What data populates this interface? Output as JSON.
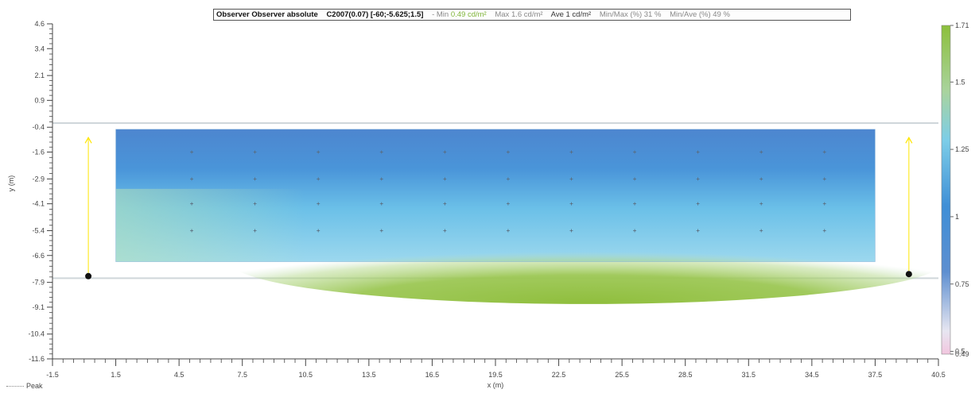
{
  "header": {
    "title": "Observer Observer absolute",
    "params": "C2007(0.07)  [-60;-5.625;1.5]",
    "min_label": "- Min",
    "min_value": "0.49 cd/m²",
    "max": "Max 1.6 cd/m²",
    "ave": "Ave 1 cd/m²",
    "minmax": "Min/Max (%) 31 %",
    "minave": "Min/Ave (%) 49 %"
  },
  "legend": {
    "peak_label": "Peak"
  },
  "chart_data": {
    "type": "heatmap",
    "title": "",
    "xlabel": "x (m)",
    "ylabel": "y (m)",
    "xlim": [
      -1.5,
      40.5
    ],
    "ylim": [
      -11.6,
      4.6
    ],
    "x_ticks": [
      "-1.5",
      "1.5",
      "4.5",
      "7.5",
      "10.5",
      "13.5",
      "16.5",
      "19.5",
      "22.5",
      "25.5",
      "28.5",
      "31.5",
      "34.5",
      "37.5",
      "40.5"
    ],
    "y_ticks": [
      "4.6",
      "3.4",
      "2.1",
      "0.9",
      "-0.4",
      "-1.6",
      "-2.9",
      "-4.1",
      "-5.4",
      "-6.6",
      "-7.9",
      "-9.1",
      "-10.4",
      "-11.6"
    ],
    "road_area": {
      "x": [
        -1.5,
        40.5
      ],
      "y": [
        -7.7,
        -0.2
      ]
    },
    "calc_area": {
      "x": [
        1.5,
        37.5
      ],
      "y": [
        -6.9,
        -0.5
      ]
    },
    "grid_x": [
      5.1,
      8.1,
      11.1,
      14.1,
      17.1,
      20.1,
      23.1,
      26.1,
      29.1,
      32.1,
      35.1
    ],
    "grid_y": [
      -1.6,
      -2.9,
      -4.1,
      -5.4
    ],
    "observers": [
      {
        "x": 0.2,
        "y": -7.6
      },
      {
        "x": 39.1,
        "y": -7.5
      }
    ],
    "colorbar": {
      "ticks": [
        {
          "value": 1.71,
          "label": "1.71"
        },
        {
          "value": 1.5,
          "label": "1.5"
        },
        {
          "value": 1.25,
          "label": "1.25"
        },
        {
          "value": 1.0,
          "label": "1"
        },
        {
          "value": 0.75,
          "label": "0.75"
        },
        {
          "value": 0.5,
          "label": "0.5"
        },
        {
          "value": 0.49,
          "label": "0.49"
        }
      ],
      "min": 0.49,
      "max": 1.71
    },
    "colors": {
      "axis": "#444444",
      "observer_arrow": "#ffe600",
      "grid_marker": "#5a6a7a"
    }
  }
}
